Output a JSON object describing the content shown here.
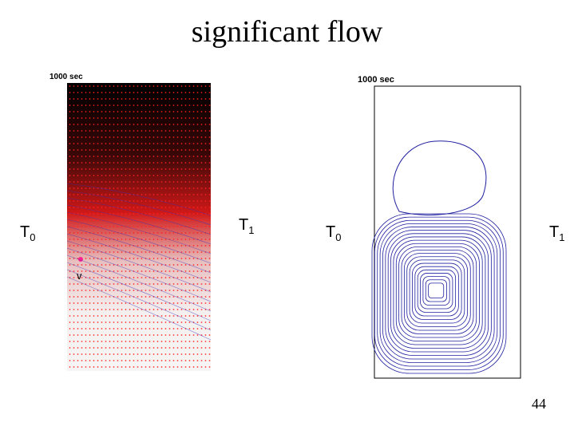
{
  "title": "significant flow",
  "left_panel": {
    "time": "1000 sec",
    "vector_label": "v"
  },
  "right_panel": {
    "time": "1000 sec"
  },
  "labels": {
    "left_t0": {
      "text": "T",
      "sub": "0"
    },
    "left_t1": {
      "text": "T",
      "sub": "1"
    },
    "right_t0": {
      "text": "T",
      "sub": "0"
    },
    "right_t1": {
      "text": "T",
      "sub": "1"
    }
  },
  "page_number": "44"
}
